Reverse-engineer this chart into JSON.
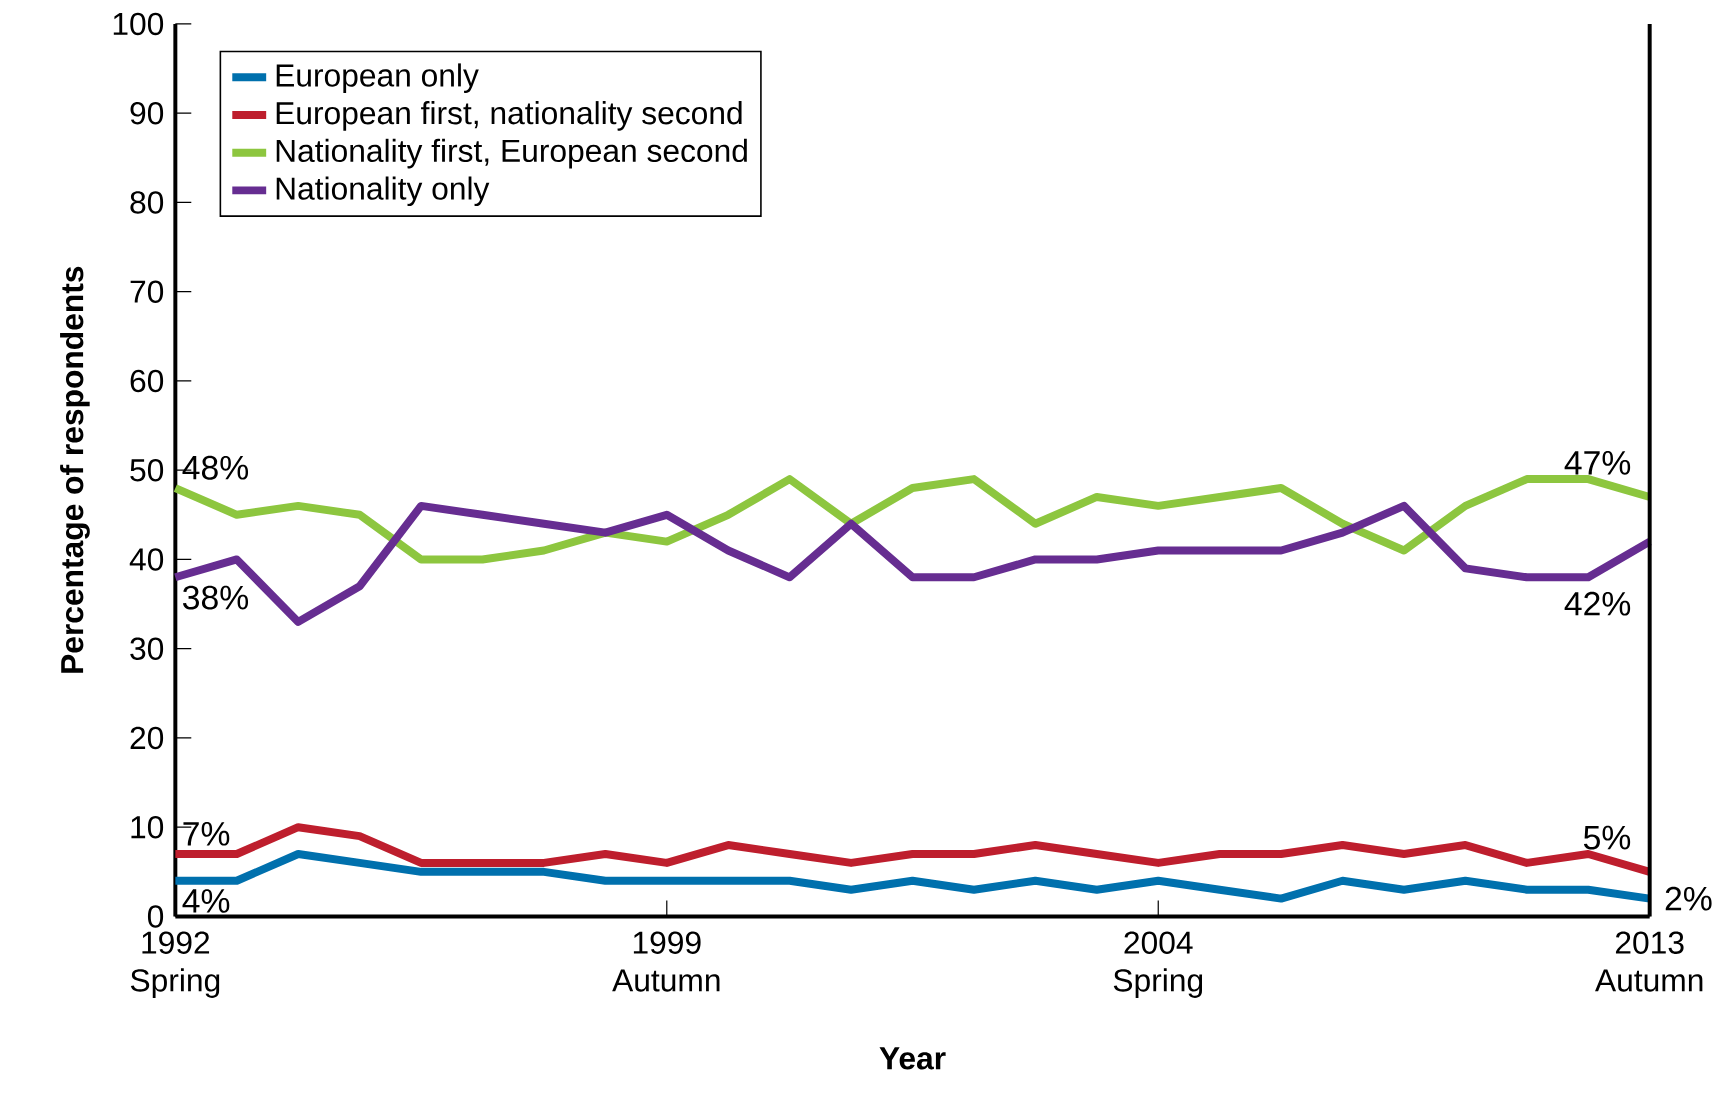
{
  "chart_data": {
    "type": "line",
    "xlabel": "Year",
    "ylabel": "Percentage of respondents",
    "categories": [
      "1992 Spring",
      null,
      null,
      null,
      null,
      null,
      null,
      null,
      "1999 Autumn",
      null,
      null,
      null,
      null,
      null,
      null,
      null,
      "2004 Spring",
      null,
      null,
      null,
      null,
      null,
      null,
      null,
      "2013 Autumn"
    ],
    "series": [
      {
        "name": "European only",
        "color": "#0070ad",
        "values": [
          4,
          4,
          7,
          6,
          5,
          5,
          5,
          4,
          4,
          4,
          4,
          3,
          4,
          3,
          4,
          3,
          4,
          3,
          2,
          4,
          3,
          4,
          3,
          3,
          2
        ]
      },
      {
        "name": "European first, nationality second",
        "color": "#be1e2d",
        "values": [
          7,
          7,
          10,
          9,
          6,
          6,
          6,
          7,
          6,
          8,
          7,
          6,
          7,
          7,
          8,
          7,
          6,
          7,
          7,
          8,
          7,
          8,
          6,
          7,
          5
        ]
      },
      {
        "name": "Nationality first, European second",
        "color": "#8dc63f",
        "values": [
          48,
          45,
          46,
          45,
          40,
          40,
          41,
          43,
          42,
          45,
          49,
          44,
          48,
          49,
          44,
          47,
          46,
          47,
          48,
          44,
          41,
          46,
          49,
          49,
          47
        ]
      },
      {
        "name": "Nationality only",
        "color": "#662d91",
        "values": [
          38,
          40,
          33,
          37,
          46,
          45,
          44,
          43,
          45,
          41,
          38,
          44,
          38,
          38,
          40,
          40,
          41,
          41,
          41,
          43,
          46,
          39,
          38,
          38,
          42
        ]
      }
    ],
    "ylim": [
      0,
      100
    ],
    "yticks": [
      0,
      10,
      20,
      30,
      40,
      50,
      60,
      70,
      80,
      90,
      100
    ],
    "legend": "top left",
    "marker": "none",
    "line_style": "solid",
    "grid": false,
    "annotations": [
      {
        "text": "48%",
        "x": "1992 Spring",
        "y": 48
      },
      {
        "text": "38%",
        "x": "1992 Spring",
        "y": 38
      },
      {
        "text": "7%",
        "x": "1992 Spring",
        "y": 7
      },
      {
        "text": "4%",
        "x": "1992 Spring",
        "y": 4
      },
      {
        "text": "47%",
        "x": "2013 Autumn",
        "y": 47
      },
      {
        "text": "42%",
        "x": "2013 Autumn",
        "y": 42
      },
      {
        "text": "5%",
        "x": "2013 Autumn",
        "y": 5
      },
      {
        "text": "2%",
        "x": "2013 Autumn",
        "y": 2
      }
    ]
  }
}
